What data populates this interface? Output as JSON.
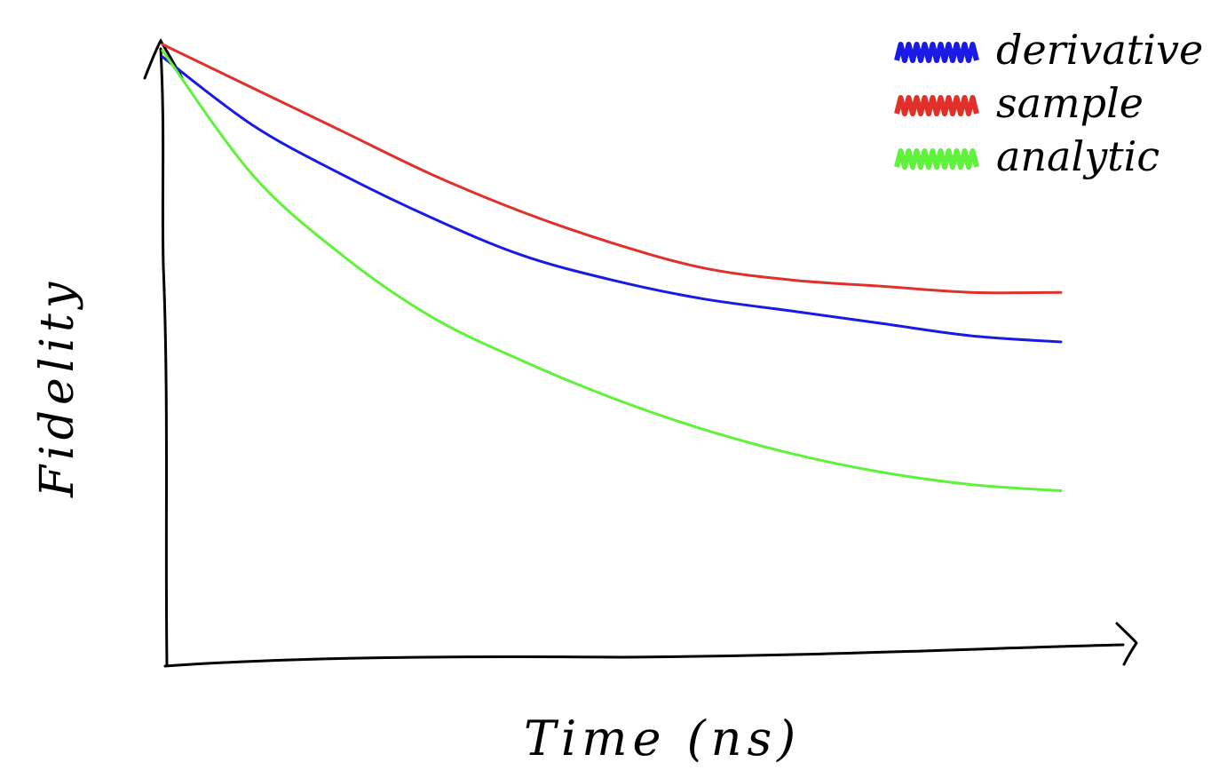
{
  "chart_data": {
    "type": "line",
    "title": "",
    "xlabel": "Time (ns)",
    "ylabel": "Fidelity",
    "grid": false,
    "legend_position": "top-right",
    "xlim": [
      0,
      1
    ],
    "ylim": [
      0,
      1
    ],
    "x": [
      0,
      0.1,
      0.2,
      0.3,
      0.4,
      0.5,
      0.6,
      0.7,
      0.8,
      0.9,
      1.0
    ],
    "series": [
      {
        "name": "derivative",
        "color": "#1a1ae6",
        "values": [
          0.98,
          0.87,
          0.79,
          0.72,
          0.66,
          0.62,
          0.59,
          0.57,
          0.55,
          0.53,
          0.52
        ]
      },
      {
        "name": "sample",
        "color": "#e0302a",
        "values": [
          1.0,
          0.93,
          0.86,
          0.79,
          0.73,
          0.68,
          0.64,
          0.62,
          0.61,
          0.6,
          0.6
        ]
      },
      {
        "name": "analytic",
        "color": "#5ef23a",
        "values": [
          0.99,
          0.79,
          0.66,
          0.56,
          0.49,
          0.43,
          0.38,
          0.34,
          0.31,
          0.29,
          0.28
        ]
      }
    ]
  }
}
